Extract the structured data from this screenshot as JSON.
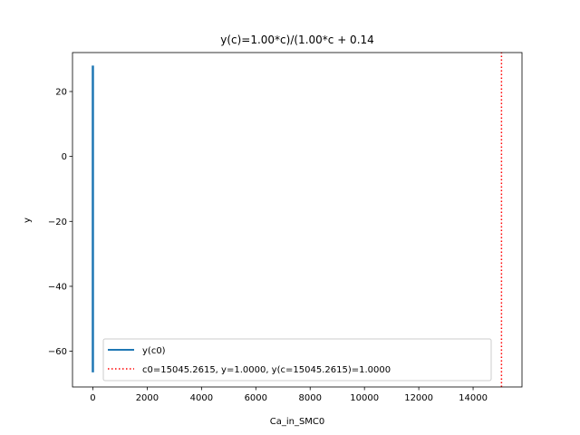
{
  "chart_data": {
    "type": "line",
    "title": "y(c)=1.00*c)/(1.00*c + 0.14",
    "xlabel": "Ca_in_SMC0",
    "ylabel": "y",
    "xlim": [
      -750,
      15800
    ],
    "ylim": [
      -71,
      32
    ],
    "xticks": [
      0,
      2000,
      4000,
      6000,
      8000,
      10000,
      12000,
      14000
    ],
    "xtick_labels": [
      "0",
      "2000",
      "4000",
      "6000",
      "8000",
      "10000",
      "12000",
      "14000"
    ],
    "yticks": [
      20,
      0,
      -20,
      -40,
      -60
    ],
    "ytick_labels": [
      "20",
      "0",
      "−20",
      "−40",
      "−60"
    ],
    "grid": false,
    "legend_position": "lower-right",
    "series": [
      {
        "name": "y(c0)",
        "style": "solid",
        "color": "#1f77b4",
        "x": [
          0,
          0
        ],
        "y": [
          -66.5,
          28
        ]
      },
      {
        "name": "c0=15045.2615, y=1.0000, y(c=15045.2615)=1.0000",
        "style": "dotted",
        "color": "#ff0000",
        "x": [
          15045.2615,
          15045.2615
        ],
        "y": [
          -71,
          32
        ]
      }
    ]
  }
}
